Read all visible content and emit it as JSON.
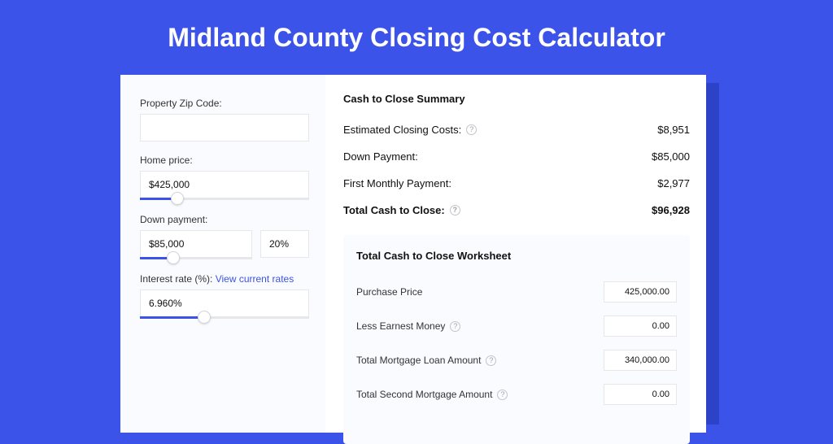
{
  "colors": {
    "page_bg": "#3b53e8",
    "shadow": "#2d43c7",
    "card_bg": "#ffffff",
    "panel_bg": "#fafbff",
    "accent": "#3b53e8",
    "border": "#e5e7eb",
    "text": "#111111",
    "muted": "#333333",
    "help_border": "#c0c4cc"
  },
  "title": "Midland County Closing Cost Calculator",
  "inputs": {
    "zip": {
      "label": "Property Zip Code:",
      "value": ""
    },
    "home_price": {
      "label": "Home price:",
      "value": "$425,000",
      "slider_pct": 22
    },
    "down_payment": {
      "label": "Down payment:",
      "value": "$85,000",
      "pct_value": "20%",
      "slider_pct": 30
    },
    "interest_rate": {
      "label": "Interest rate (%):",
      "link_text": "View current rates",
      "value": "6.960%",
      "slider_pct": 38
    }
  },
  "summary": {
    "title": "Cash to Close Summary",
    "rows": [
      {
        "label": "Estimated Closing Costs:",
        "help": true,
        "value": "$8,951",
        "bold": false
      },
      {
        "label": "Down Payment:",
        "help": false,
        "value": "$85,000",
        "bold": false
      },
      {
        "label": "First Monthly Payment:",
        "help": false,
        "value": "$2,977",
        "bold": false
      },
      {
        "label": "Total Cash to Close:",
        "help": true,
        "value": "$96,928",
        "bold": true
      }
    ]
  },
  "worksheet": {
    "title": "Total Cash to Close Worksheet",
    "rows": [
      {
        "label": "Purchase Price",
        "help": false,
        "value": "425,000.00"
      },
      {
        "label": "Less Earnest Money",
        "help": true,
        "value": "0.00"
      },
      {
        "label": "Total Mortgage Loan Amount",
        "help": true,
        "value": "340,000.00"
      },
      {
        "label": "Total Second Mortgage Amount",
        "help": true,
        "value": "0.00"
      }
    ]
  }
}
